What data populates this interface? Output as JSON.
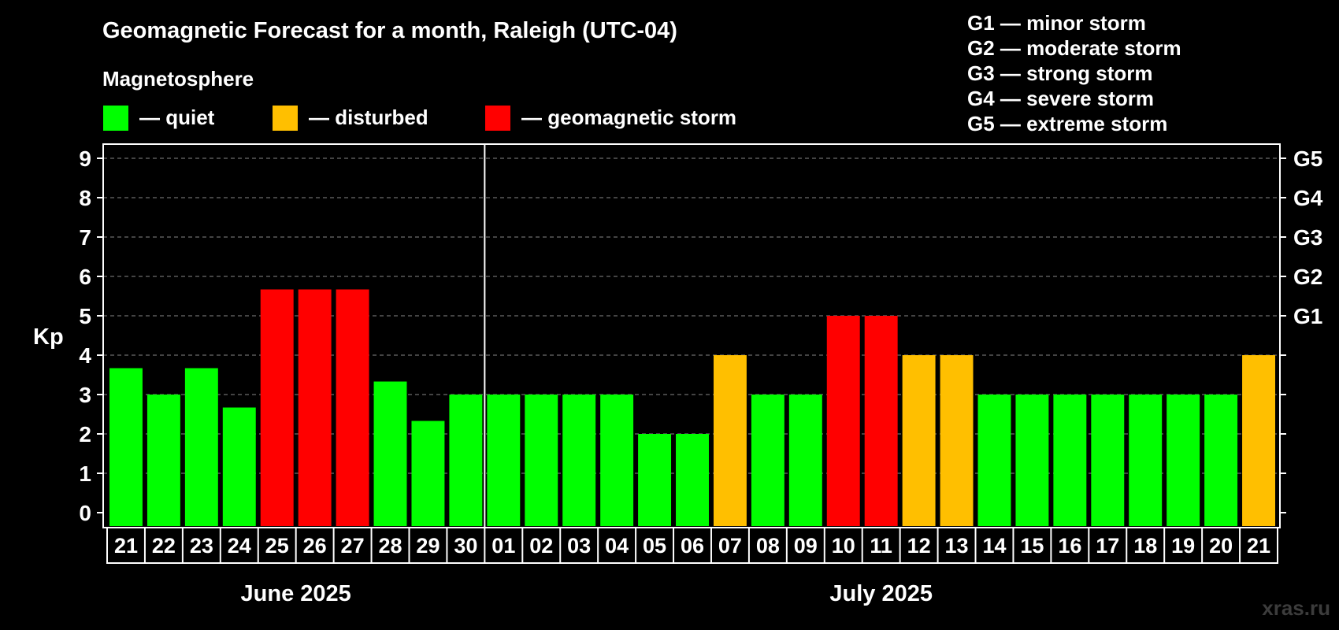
{
  "chart_data": {
    "type": "bar",
    "title": "Geomagnetic Forecast for a month, Raleigh (UTC-04)",
    "ylabel": "Kp",
    "ylim": [
      0,
      9
    ],
    "y_ticks": [
      "0",
      "1",
      "2",
      "3",
      "4",
      "5",
      "6",
      "7",
      "8",
      "9"
    ],
    "right_tick_labels": [
      {
        "kp": 5,
        "label": "G1"
      },
      {
        "kp": 6,
        "label": "G2"
      },
      {
        "kp": 7,
        "label": "G3"
      },
      {
        "kp": 8,
        "label": "G4"
      },
      {
        "kp": 9,
        "label": "G5"
      }
    ],
    "categories": [
      "21",
      "22",
      "23",
      "24",
      "25",
      "26",
      "27",
      "28",
      "29",
      "30",
      "01",
      "02",
      "03",
      "04",
      "05",
      "06",
      "07",
      "08",
      "09",
      "10",
      "11",
      "12",
      "13",
      "14",
      "15",
      "16",
      "17",
      "18",
      "19",
      "20",
      "21"
    ],
    "values": [
      3.67,
      3,
      3.67,
      2.67,
      5.67,
      5.67,
      5.67,
      3.33,
      2.33,
      3,
      3,
      3,
      3,
      3,
      2,
      2,
      4,
      3,
      3,
      5,
      5,
      4,
      4,
      3,
      3,
      3,
      3,
      3,
      3,
      3,
      4
    ],
    "levels": [
      "quiet",
      "quiet",
      "quiet",
      "quiet",
      "storm",
      "storm",
      "storm",
      "quiet",
      "quiet",
      "quiet",
      "quiet",
      "quiet",
      "quiet",
      "quiet",
      "quiet",
      "quiet",
      "disturbed",
      "quiet",
      "quiet",
      "storm",
      "storm",
      "disturbed",
      "disturbed",
      "quiet",
      "quiet",
      "quiet",
      "quiet",
      "quiet",
      "quiet",
      "quiet",
      "disturbed"
    ],
    "month_labels": [
      {
        "label": "June 2025",
        "first_index": 0,
        "last_index": 9
      },
      {
        "label": "July 2025",
        "first_index": 10,
        "last_index": 30
      }
    ],
    "legend": {
      "heading": "Magnetosphere",
      "items": [
        {
          "key": "quiet",
          "label": "— quiet",
          "color": "#00ff00"
        },
        {
          "key": "disturbed",
          "label": "— disturbed",
          "color": "#ffbf00"
        },
        {
          "key": "storm",
          "label": "— geomagnetic storm",
          "color": "#ff0000"
        }
      ]
    },
    "storm_scale": [
      "G1 — minor storm",
      "G2 — moderate storm",
      "G3 — strong storm",
      "G4 — severe storm",
      "G5 — extreme storm"
    ],
    "grid": true
  },
  "watermark": "xras.ru"
}
